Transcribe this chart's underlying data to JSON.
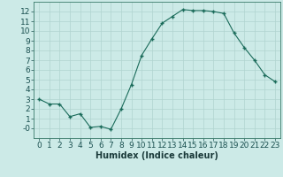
{
  "x": [
    0,
    1,
    2,
    3,
    4,
    5,
    6,
    7,
    8,
    9,
    10,
    11,
    12,
    13,
    14,
    15,
    16,
    17,
    18,
    19,
    20,
    21,
    22,
    23
  ],
  "y": [
    3,
    2.5,
    2.5,
    1.2,
    1.5,
    0.1,
    0.2,
    -0.1,
    2.0,
    4.5,
    7.5,
    9.2,
    10.8,
    11.5,
    12.2,
    12.1,
    12.1,
    12.0,
    11.8,
    9.8,
    8.3,
    7.0,
    5.5,
    4.8
  ],
  "line_color": "#1a6b5a",
  "marker": "+",
  "marker_size": 3,
  "marker_lw": 1.0,
  "line_width": 0.8,
  "bg_color": "#cceae7",
  "grid_color": "#b0d4d0",
  "xlabel": "Humidex (Indice chaleur)",
  "xlim": [
    -0.5,
    23.5
  ],
  "ylim": [
    -1,
    13
  ],
  "yticks": [
    0,
    1,
    2,
    3,
    4,
    5,
    6,
    7,
    8,
    9,
    10,
    11,
    12
  ],
  "ytick_labels": [
    "-0",
    "1",
    "2",
    "3",
    "4",
    "5",
    "6",
    "7",
    "8",
    "9",
    "10",
    "11",
    "12"
  ],
  "xticks": [
    0,
    1,
    2,
    3,
    4,
    5,
    6,
    7,
    8,
    9,
    10,
    11,
    12,
    13,
    14,
    15,
    16,
    17,
    18,
    19,
    20,
    21,
    22,
    23
  ],
  "xlabel_fontsize": 7,
  "tick_fontsize": 6.5,
  "tick_color": "#1a5050",
  "xlabel_color": "#1a3a3a",
  "spine_color": "#3a7a6a"
}
